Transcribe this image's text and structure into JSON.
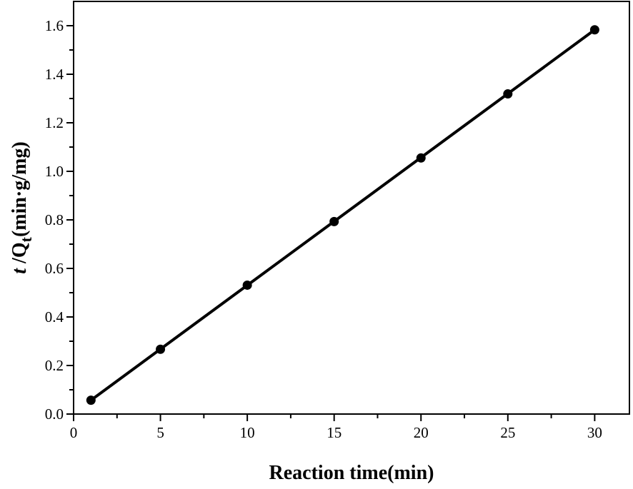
{
  "chart_data": {
    "type": "line",
    "x": [
      1,
      5,
      10,
      15,
      20,
      25,
      30
    ],
    "y": [
      0.057,
      0.267,
      0.531,
      0.793,
      1.055,
      1.319,
      1.583
    ],
    "fit_line": {
      "x": [
        1,
        30
      ],
      "y": [
        0.057,
        1.583
      ]
    },
    "xlabel": "Reaction time(min)",
    "ylabel": {
      "italic": "t",
      "main": " /Q",
      "sub": "t",
      "unit": "(min·g/mg)"
    },
    "xlim": [
      0,
      32
    ],
    "ylim": [
      0,
      1.7
    ],
    "xticks": [
      0,
      5,
      10,
      15,
      20,
      25,
      30
    ],
    "yticks": [
      0.0,
      0.2,
      0.4,
      0.6,
      0.8,
      1.0,
      1.2,
      1.4,
      1.6
    ],
    "xtick_labels": [
      "0",
      "5",
      "10",
      "15",
      "20",
      "25",
      "30"
    ],
    "ytick_labels": [
      "0.0",
      "0.2",
      "0.4",
      "0.6",
      "0.8",
      "1.0",
      "1.2",
      "1.4",
      "1.6"
    ],
    "grid": false,
    "legend": "none",
    "colors": {
      "line": "#000000",
      "marker": "#000000"
    }
  }
}
